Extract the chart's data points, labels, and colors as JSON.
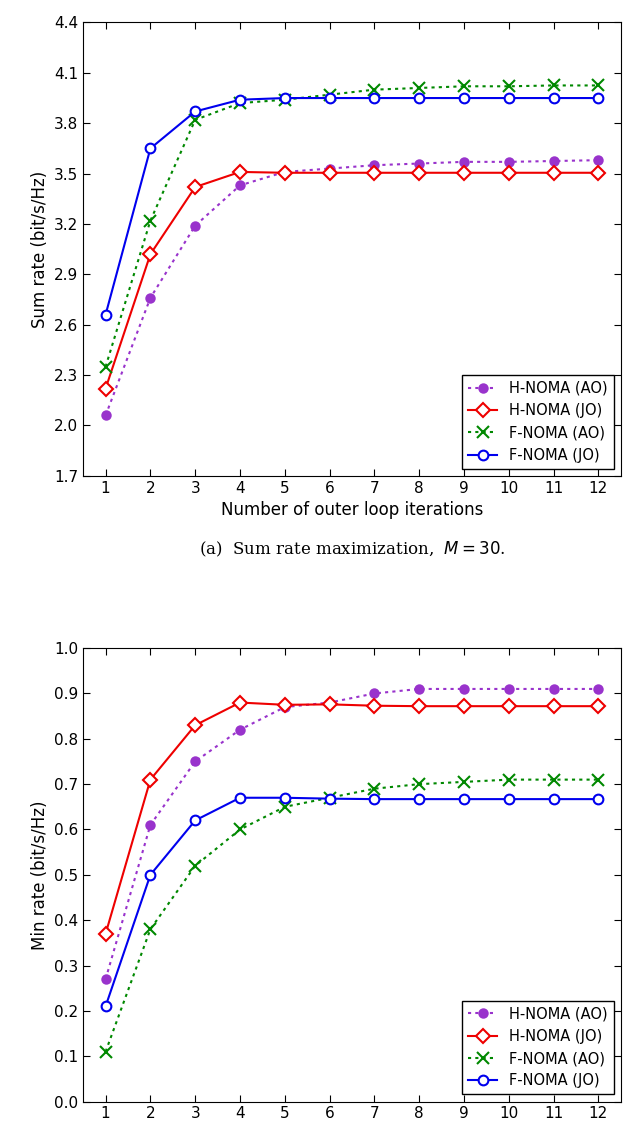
{
  "x": [
    1,
    2,
    3,
    4,
    5,
    6,
    7,
    8,
    9,
    10,
    11,
    12
  ],
  "subplot_a": {
    "title": "(a)  Sum rate maximization,  $M = 30$.",
    "ylabel": "Sum rate (bit/s/Hz)",
    "xlabel": "Number of outer loop iterations",
    "ylim": [
      1.7,
      4.4
    ],
    "yticks": [
      1.7,
      2.0,
      2.3,
      2.6,
      2.9,
      3.2,
      3.5,
      3.8,
      4.1,
      4.4
    ],
    "H_NOMA_AO": [
      2.06,
      2.76,
      3.19,
      3.43,
      3.51,
      3.53,
      3.55,
      3.56,
      3.57,
      3.57,
      3.575,
      3.58
    ],
    "H_NOMA_JO": [
      2.22,
      3.02,
      3.42,
      3.51,
      3.505,
      3.505,
      3.505,
      3.505,
      3.505,
      3.505,
      3.505,
      3.505
    ],
    "F_NOMA_AO": [
      2.35,
      3.22,
      3.82,
      3.92,
      3.94,
      3.97,
      4.0,
      4.01,
      4.02,
      4.02,
      4.025,
      4.025
    ],
    "F_NOMA_JO": [
      2.66,
      3.65,
      3.87,
      3.94,
      3.95,
      3.95,
      3.95,
      3.95,
      3.95,
      3.95,
      3.95,
      3.95
    ]
  },
  "subplot_b": {
    "title": "(b)  Min rate maximization,  $M = 30$.",
    "ylabel": "Min rate (bit/s/Hz)",
    "xlabel": "Number of outer loop iterations",
    "ylim": [
      0.0,
      1.0
    ],
    "yticks": [
      0.0,
      0.1,
      0.2,
      0.3,
      0.4,
      0.5,
      0.6,
      0.7,
      0.8,
      0.9,
      1.0
    ],
    "H_NOMA_AO": [
      0.27,
      0.61,
      0.75,
      0.82,
      0.87,
      0.88,
      0.9,
      0.91,
      0.91,
      0.91,
      0.91,
      0.91
    ],
    "H_NOMA_JO": [
      0.37,
      0.71,
      0.83,
      0.88,
      0.875,
      0.876,
      0.873,
      0.872,
      0.872,
      0.872,
      0.872,
      0.872
    ],
    "F_NOMA_AO": [
      0.11,
      0.38,
      0.52,
      0.6,
      0.65,
      0.67,
      0.69,
      0.7,
      0.705,
      0.71,
      0.71,
      0.71
    ],
    "F_NOMA_JO": [
      0.21,
      0.5,
      0.62,
      0.67,
      0.67,
      0.668,
      0.667,
      0.667,
      0.667,
      0.667,
      0.667,
      0.667
    ]
  },
  "colors": {
    "H_NOMA_AO": "#9933CC",
    "H_NOMA_JO": "#EE0000",
    "F_NOMA_AO": "#008800",
    "F_NOMA_JO": "#0000EE"
  },
  "legend_labels": {
    "H_NOMA_AO": "H-NOMA (AO)",
    "H_NOMA_JO": "H-NOMA (JO)",
    "F_NOMA_AO": "F-NOMA (AO)",
    "F_NOMA_JO": "F-NOMA (JO)"
  },
  "fig_width": 6.4,
  "fig_height": 11.24,
  "dpi": 100
}
